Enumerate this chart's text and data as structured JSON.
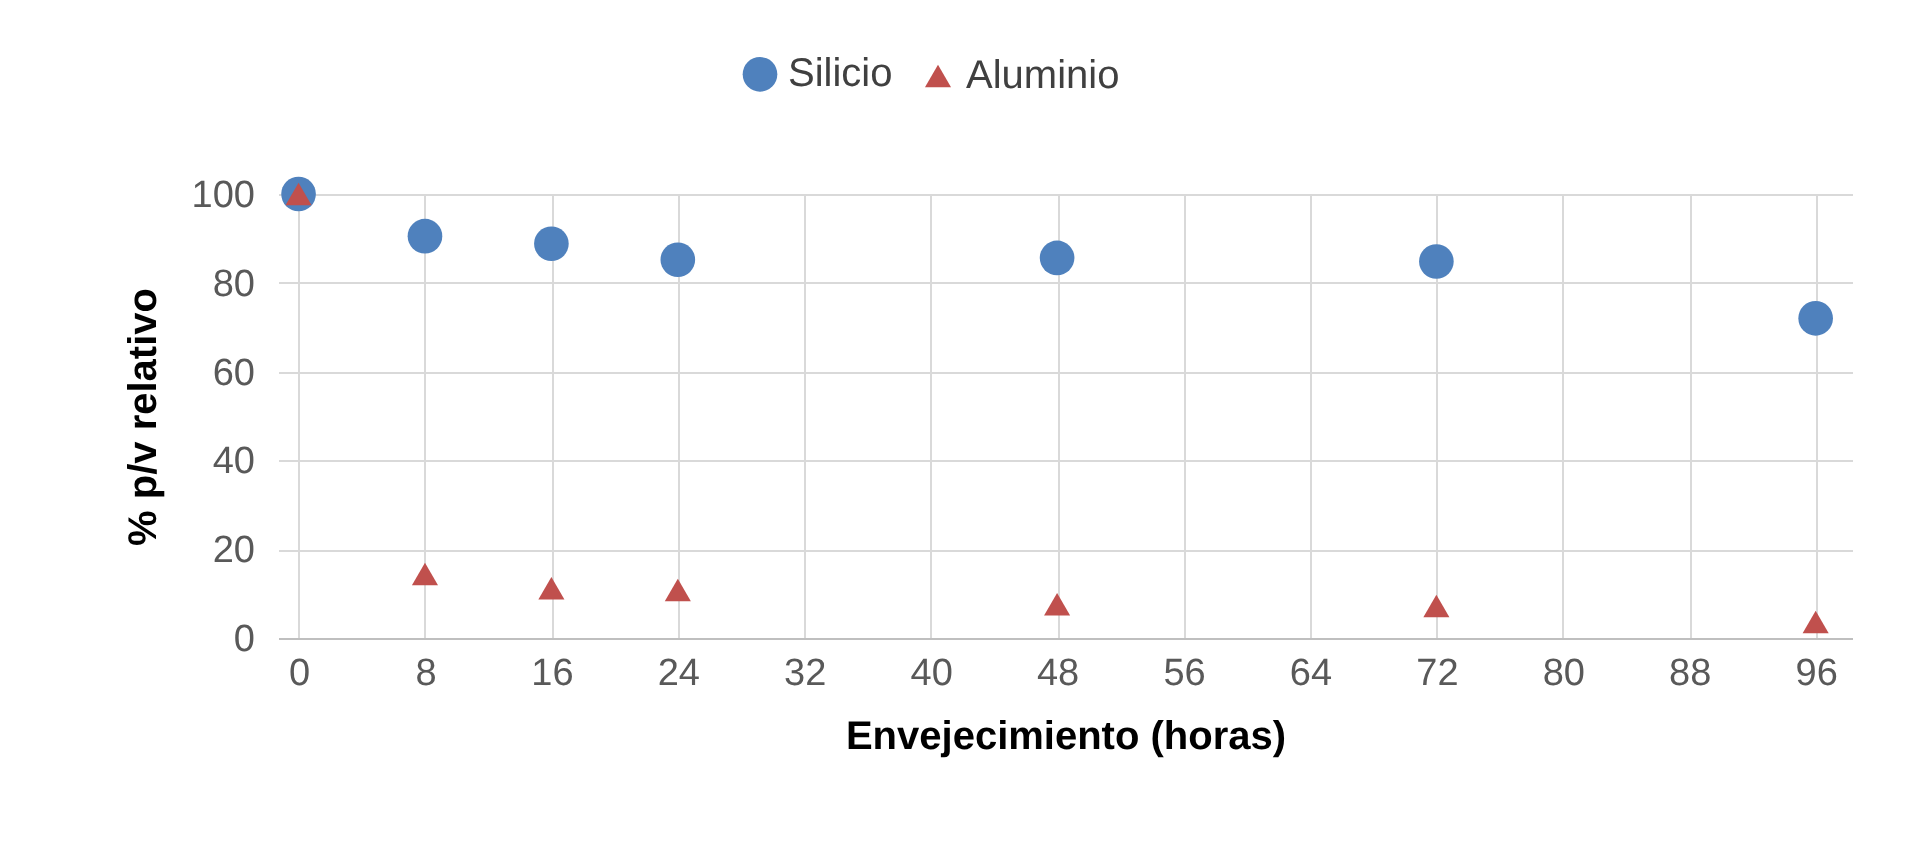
{
  "chart_data": {
    "type": "scatter",
    "xlabel": "Envejecimiento  (horas)",
    "ylabel": "% p/v relativo",
    "x": [
      0,
      8,
      16,
      24,
      48,
      72,
      96
    ],
    "series": [
      {
        "name": "Silicio",
        "color": "#4f81bd",
        "marker": "circle",
        "values": [
          100,
          90.5,
          88.8,
          85.2,
          85.6,
          84.8,
          72
        ]
      },
      {
        "name": "Aluminio",
        "color": "#c0504d",
        "marker": "triangle",
        "values": [
          100,
          14.4,
          11.2,
          10.8,
          7.6,
          7.2,
          3.6
        ]
      }
    ],
    "xlim": [
      -1.3,
      98.3
    ],
    "xticks": [
      0,
      8,
      16,
      24,
      32,
      40,
      48,
      56,
      64,
      72,
      80,
      88,
      96
    ],
    "ylim": [
      0,
      100
    ],
    "yticks": [
      0,
      20,
      40,
      60,
      80,
      100
    ],
    "grid": true,
    "legend": "top"
  }
}
